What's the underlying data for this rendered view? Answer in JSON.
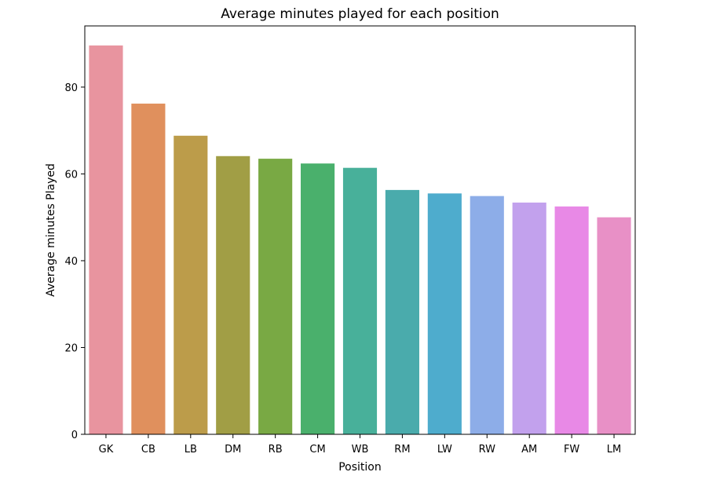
{
  "chart_data": {
    "type": "bar",
    "title": "Average minutes played for each position",
    "xlabel": "Position",
    "ylabel": "Average minutes Played",
    "categories": [
      "GK",
      "CB",
      "LB",
      "DM",
      "RB",
      "CM",
      "WB",
      "RM",
      "LW",
      "RW",
      "AM",
      "FW",
      "LM"
    ],
    "values": [
      89.6,
      76.2,
      68.8,
      64.1,
      63.5,
      62.4,
      61.4,
      56.3,
      55.5,
      54.9,
      53.4,
      52.5,
      50.0
    ],
    "colors": [
      "#e8949f",
      "#e0905d",
      "#bc9c4a",
      "#a19e45",
      "#79a944",
      "#4ab06c",
      "#48b09a",
      "#4aabac",
      "#4eaccd",
      "#8dade8",
      "#c2a1ed",
      "#e889e6",
      "#e890c6"
    ],
    "yticks": [
      0,
      20,
      40,
      60,
      80
    ],
    "ylim": [
      0,
      94.1
    ],
    "grid": false,
    "legend": "none"
  }
}
